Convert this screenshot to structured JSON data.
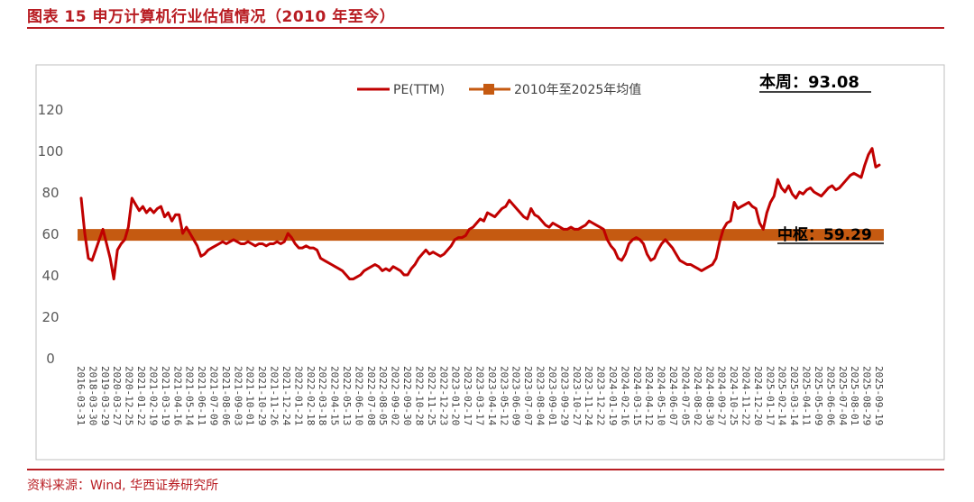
{
  "figure": {
    "title": "图表 15 申万计算机行业估值情况（2010 年至今）",
    "source": "资料来源：Wind, 华西证券研究所"
  },
  "colors": {
    "brand": "#b81c22",
    "pe_line": "#c00000",
    "mean_band": "#c55a11"
  },
  "chart_data": {
    "type": "line",
    "title": "",
    "xlabel": "",
    "ylabel": "",
    "ylim": [
      0,
      120
    ],
    "yticks": [
      0,
      20,
      40,
      60,
      80,
      100,
      120
    ],
    "grid": false,
    "legend_position": "top-center",
    "x_tick_labels": [
      "2016-03-31",
      "2018-03-30",
      "2019-03-29",
      "2020-03-27",
      "2020-12-25",
      "2021-01-22",
      "2021-02-19",
      "2021-03-19",
      "2021-04-16",
      "2021-05-14",
      "2021-06-11",
      "2021-07-09",
      "2021-08-06",
      "2021-09-03",
      "2021-10-01",
      "2021-10-29",
      "2021-11-26",
      "2021-12-24",
      "2022-01-21",
      "2022-02-18",
      "2022-03-18",
      "2022-04-15",
      "2022-05-13",
      "2022-06-10",
      "2022-07-08",
      "2022-08-05",
      "2022-09-02",
      "2022-09-30",
      "2022-10-28",
      "2022-11-25",
      "2022-12-23",
      "2023-01-20",
      "2023-02-17",
      "2023-03-17",
      "2023-04-14",
      "2023-05-12",
      "2023-06-09",
      "2023-07-07",
      "2023-08-04",
      "2023-09-01",
      "2023-09-29",
      "2023-10-27",
      "2023-11-24",
      "2023-12-22",
      "2024-01-19",
      "2024-02-16",
      "2024-03-15",
      "2024-04-12",
      "2024-05-10",
      "2024-06-07",
      "2024-07-05",
      "2024-08-02",
      "2024-08-30",
      "2024-09-27",
      "2024-10-25",
      "2024-11-22",
      "2024-12-20",
      "2025-01-17",
      "2025-02-14",
      "2025-03-14",
      "2025-04-11",
      "2025-05-09",
      "2025-06-06",
      "2025-07-04",
      "2025-08-01",
      "2025-08-29",
      "2025-09-19"
    ],
    "series": [
      {
        "name": "PE(TTM)",
        "values": [
          77,
          60,
          48,
          47,
          52,
          57,
          62,
          55,
          48,
          38,
          52,
          55,
          57,
          63,
          77,
          74,
          71,
          73,
          70,
          72,
          70,
          72,
          73,
          68,
          70,
          66,
          69,
          69,
          60,
          63,
          60,
          57,
          54,
          49,
          50,
          52,
          53,
          54,
          55,
          56,
          55,
          56,
          57,
          56,
          55,
          55,
          56,
          55,
          54,
          55,
          55,
          54,
          55,
          55,
          56,
          55,
          56,
          60,
          58,
          55,
          53,
          53,
          54,
          53,
          53,
          52,
          48,
          47,
          46,
          45,
          44,
          43,
          42,
          40,
          38,
          38,
          39,
          40,
          42,
          43,
          44,
          45,
          44,
          42,
          43,
          42,
          44,
          43,
          42,
          40,
          40,
          43,
          45,
          48,
          50,
          52,
          50,
          51,
          50,
          49,
          50,
          52,
          54,
          57,
          58,
          58,
          59,
          62,
          63,
          65,
          67,
          66,
          70,
          69,
          68,
          70,
          72,
          73,
          76,
          74,
          72,
          70,
          68,
          67,
          72,
          69,
          68,
          66,
          64,
          63,
          65,
          64,
          63,
          62,
          62,
          63,
          62,
          62,
          63,
          64,
          66,
          65,
          64,
          63,
          62,
          57,
          54,
          52,
          48,
          47,
          50,
          55,
          57,
          58,
          57,
          55,
          50,
          47,
          48,
          52,
          55,
          57,
          55,
          53,
          50,
          47,
          46,
          45,
          45,
          44,
          43,
          42,
          43,
          44,
          45,
          48,
          56,
          62,
          65,
          66,
          75,
          72,
          73,
          74,
          75,
          73,
          72,
          65,
          62,
          70,
          75,
          78,
          86,
          82,
          80,
          83,
          79,
          77,
          80,
          79,
          81,
          82,
          80,
          79,
          78,
          80,
          82,
          83,
          81,
          82,
          84,
          86,
          88,
          89,
          88,
          87,
          93,
          98,
          101,
          92,
          93
        ]
      },
      {
        "name": "2010年至2025年均值",
        "value": 59.29
      }
    ],
    "annotations": {
      "current_label": "本周：93.08",
      "mean_label": "中枢：59.29"
    }
  }
}
